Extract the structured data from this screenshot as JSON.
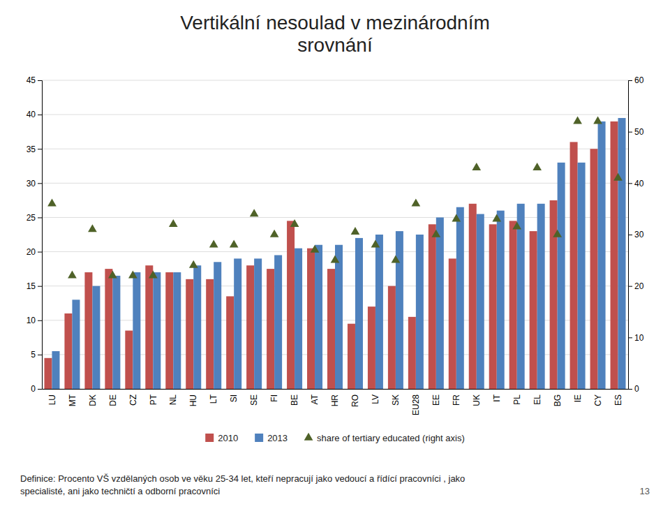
{
  "chart_data": {
    "type": "bar",
    "title": "Vertikální nesoulad v mezinárodním\nsrovnání",
    "categories": [
      "LU",
      "MT",
      "DK",
      "DE",
      "CZ",
      "PT",
      "NL",
      "HU",
      "LT",
      "SI",
      "SE",
      "FI",
      "BE",
      "AT",
      "HR",
      "RO",
      "LV",
      "SK",
      "EU28",
      "EE",
      "FR",
      "UK",
      "IT",
      "PL",
      "EL",
      "BG",
      "IE",
      "CY",
      "ES"
    ],
    "series": [
      {
        "name": "2010",
        "color": "#C0504D",
        "values": [
          4.5,
          11,
          17,
          17.5,
          8.5,
          18,
          17,
          16,
          16,
          13.5,
          18,
          17.5,
          24.5,
          20.5,
          17.5,
          9.5,
          12,
          15,
          10.5,
          24,
          19,
          27,
          24,
          24.5,
          23,
          27.5,
          36,
          35,
          39
        ]
      },
      {
        "name": "2013",
        "color": "#4F81BD",
        "values": [
          5.5,
          13,
          15,
          16.5,
          17,
          17,
          17,
          18,
          18.5,
          19,
          19,
          19.5,
          20.5,
          21,
          21,
          22,
          22.5,
          23,
          22.5,
          25,
          26.5,
          25.5,
          26,
          27,
          27,
          33,
          33,
          39,
          39.5
        ]
      },
      {
        "name": "share of tertiary educated (right axis)",
        "color": "#4F6228",
        "type": "scatter",
        "marker": "triangle",
        "axis": "y2",
        "values": [
          36,
          22,
          31,
          22,
          22,
          22,
          32,
          24,
          28,
          28,
          34,
          30,
          32,
          27,
          25,
          30.5,
          28,
          25,
          36,
          30,
          33,
          43,
          33,
          31.5,
          43,
          30,
          52,
          52,
          41
        ]
      }
    ],
    "ylim": [
      0,
      45
    ],
    "yticks": [
      0,
      5,
      10,
      15,
      20,
      25,
      30,
      35,
      40,
      45
    ],
    "y2lim": [
      0,
      60
    ],
    "y2ticks": [
      0,
      10,
      20,
      30,
      40,
      50,
      60
    ],
    "grid": true,
    "legend": "bottom",
    "annotations": [
      "Definice: Procento VŠ vzdělaných osob ve věku 25-34 let, kteří nepracují jako vedoucí a řídící pracovníci , jako",
      "specialisté, ani jako techničtí a odborní pracovníci",
      "13"
    ]
  }
}
